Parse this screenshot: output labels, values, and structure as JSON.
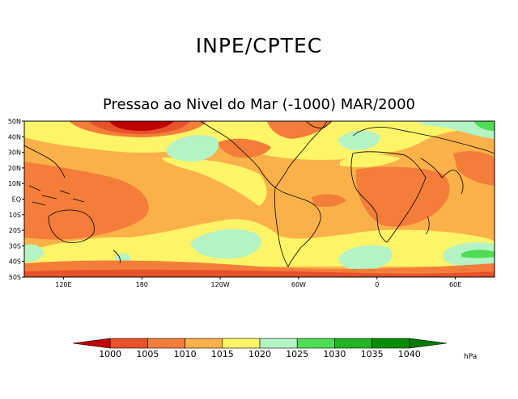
{
  "header": {
    "institute": "INPE/CPTEC",
    "subtitle": "Pressao ao Nivel do Mar (-1000) MAR/2000"
  },
  "map": {
    "lat_ticks": [
      "50N",
      "40N",
      "30N",
      "20N",
      "10N",
      "EQ",
      "10S",
      "20S",
      "30S",
      "40S",
      "50S"
    ],
    "lon_ticks": [
      {
        "label": "120E",
        "lon": 120
      },
      {
        "label": "180",
        "lon": 180
      },
      {
        "label": "120W",
        "lon": 240
      },
      {
        "label": "60W",
        "lon": 300
      },
      {
        "label": "0",
        "lon": 360
      },
      {
        "label": "60E",
        "lon": 420
      }
    ],
    "lon_range": [
      90,
      450
    ],
    "lat_range": [
      -50,
      50
    ]
  },
  "legend": {
    "levels": [
      "1000",
      "1005",
      "1010",
      "1015",
      "1020",
      "1025",
      "1030",
      "1035",
      "1040"
    ],
    "colors": [
      "#c00000",
      "#e8522a",
      "#f47d3a",
      "#fab14a",
      "#fef467",
      "#b4f3c4",
      "#4fdd56",
      "#22b522",
      "#068f06",
      "#067a06"
    ],
    "unit": "hPa"
  },
  "colors": {
    "lt_1000": "#c00000",
    "c1000_1005": "#e8522a",
    "c1005_1010": "#f47d3a",
    "c1010_1015": "#fab14a",
    "c1015_1020": "#fef467",
    "c1020_1025": "#b4f3c4",
    "c1025_1030": "#4fdd56",
    "c1030_1035": "#22b522"
  }
}
